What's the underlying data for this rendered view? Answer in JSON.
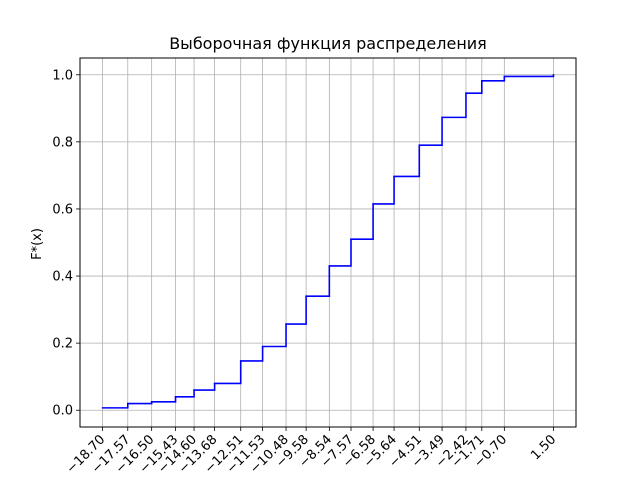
{
  "chart_data": {
    "type": "line",
    "step": "post",
    "title": "Выборочная функция распределения",
    "xlabel": "",
    "ylabel": "F*(x)",
    "grid": true,
    "line_color": "#0000ff",
    "grid_color": "#b0b0b0",
    "xlim": [
      -19.71,
      2.51
    ],
    "ylim": [
      -0.05,
      1.05
    ],
    "x_ticks": [
      -18.7,
      -17.57,
      -16.5,
      -15.43,
      -14.6,
      -13.68,
      -12.51,
      -11.53,
      -10.48,
      -9.58,
      -8.54,
      -7.57,
      -6.58,
      -5.64,
      -4.51,
      -3.49,
      -2.42,
      -1.71,
      -0.7,
      1.5
    ],
    "x_tick_labels": [
      "−18.70",
      "−17.57",
      "−16.50",
      "−15.43",
      "−14.60",
      "−13.68",
      "−12.51",
      "−11.53",
      "−10.48",
      "−9.58",
      "−8.54",
      "−7.57",
      "−6.58",
      "−5.64",
      "−4.51",
      "−3.49",
      "−2.42",
      "−1.71",
      "−0.70",
      "1.50"
    ],
    "y_ticks": [
      0.0,
      0.2,
      0.4,
      0.6,
      0.8,
      1.0
    ],
    "y_tick_labels": [
      "0.0",
      "0.2",
      "0.4",
      "0.6",
      "0.8",
      "1.0"
    ],
    "series": [
      {
        "x": [
          -18.7,
          -17.57,
          -16.5,
          -15.43,
          -14.6,
          -13.68,
          -12.51,
          -11.53,
          -10.48,
          -9.58,
          -8.54,
          -7.57,
          -6.58,
          -5.64,
          -4.51,
          -3.49,
          -2.42,
          -1.71,
          -0.7,
          1.5
        ],
        "y": [
          0.007,
          0.02,
          0.025,
          0.04,
          0.06,
          0.08,
          0.147,
          0.19,
          0.257,
          0.34,
          0.43,
          0.51,
          0.615,
          0.697,
          0.79,
          0.873,
          0.945,
          0.982,
          0.995,
          1.0
        ]
      }
    ]
  }
}
